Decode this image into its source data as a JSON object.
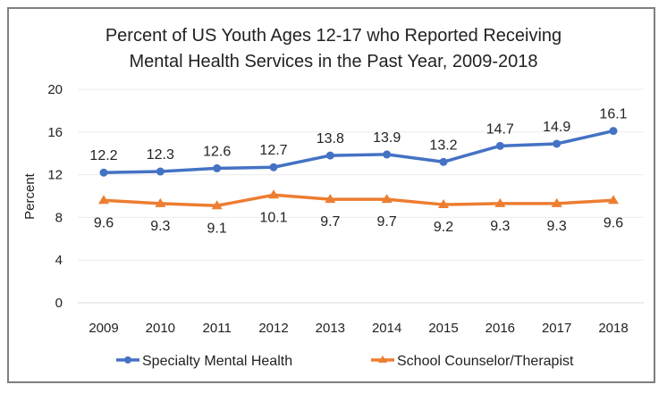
{
  "chart_data": {
    "type": "line",
    "title": "Percent of US Youth Ages 12-17 who Reported Receiving Mental Health Services in the Past Year, 2009-2018",
    "title_lines": [
      "Percent of US Youth Ages 12-17 who Reported Receiving",
      "Mental Health Services in the Past Year, 2009-2018"
    ],
    "xlabel": "",
    "ylabel": "Percent",
    "categories": [
      "2009",
      "2010",
      "2011",
      "2012",
      "2013",
      "2014",
      "2015",
      "2016",
      "2017",
      "2018"
    ],
    "ylim": [
      0,
      20
    ],
    "yticks": [
      0,
      4,
      8,
      12,
      16,
      20
    ],
    "grid": true,
    "legend_position": "bottom",
    "series": [
      {
        "name": "Specialty Mental Health",
        "color": "#4472c4",
        "marker": "circle",
        "label_position": "above",
        "values": [
          12.2,
          12.3,
          12.6,
          12.7,
          13.8,
          13.9,
          13.2,
          14.7,
          14.9,
          16.1
        ]
      },
      {
        "name": "School Counselor/Therapist",
        "color": "#ed7d31",
        "marker": "triangle",
        "label_position": "below",
        "values": [
          9.6,
          9.3,
          9.1,
          10.1,
          9.7,
          9.7,
          9.2,
          9.3,
          9.3,
          9.6
        ]
      }
    ]
  }
}
